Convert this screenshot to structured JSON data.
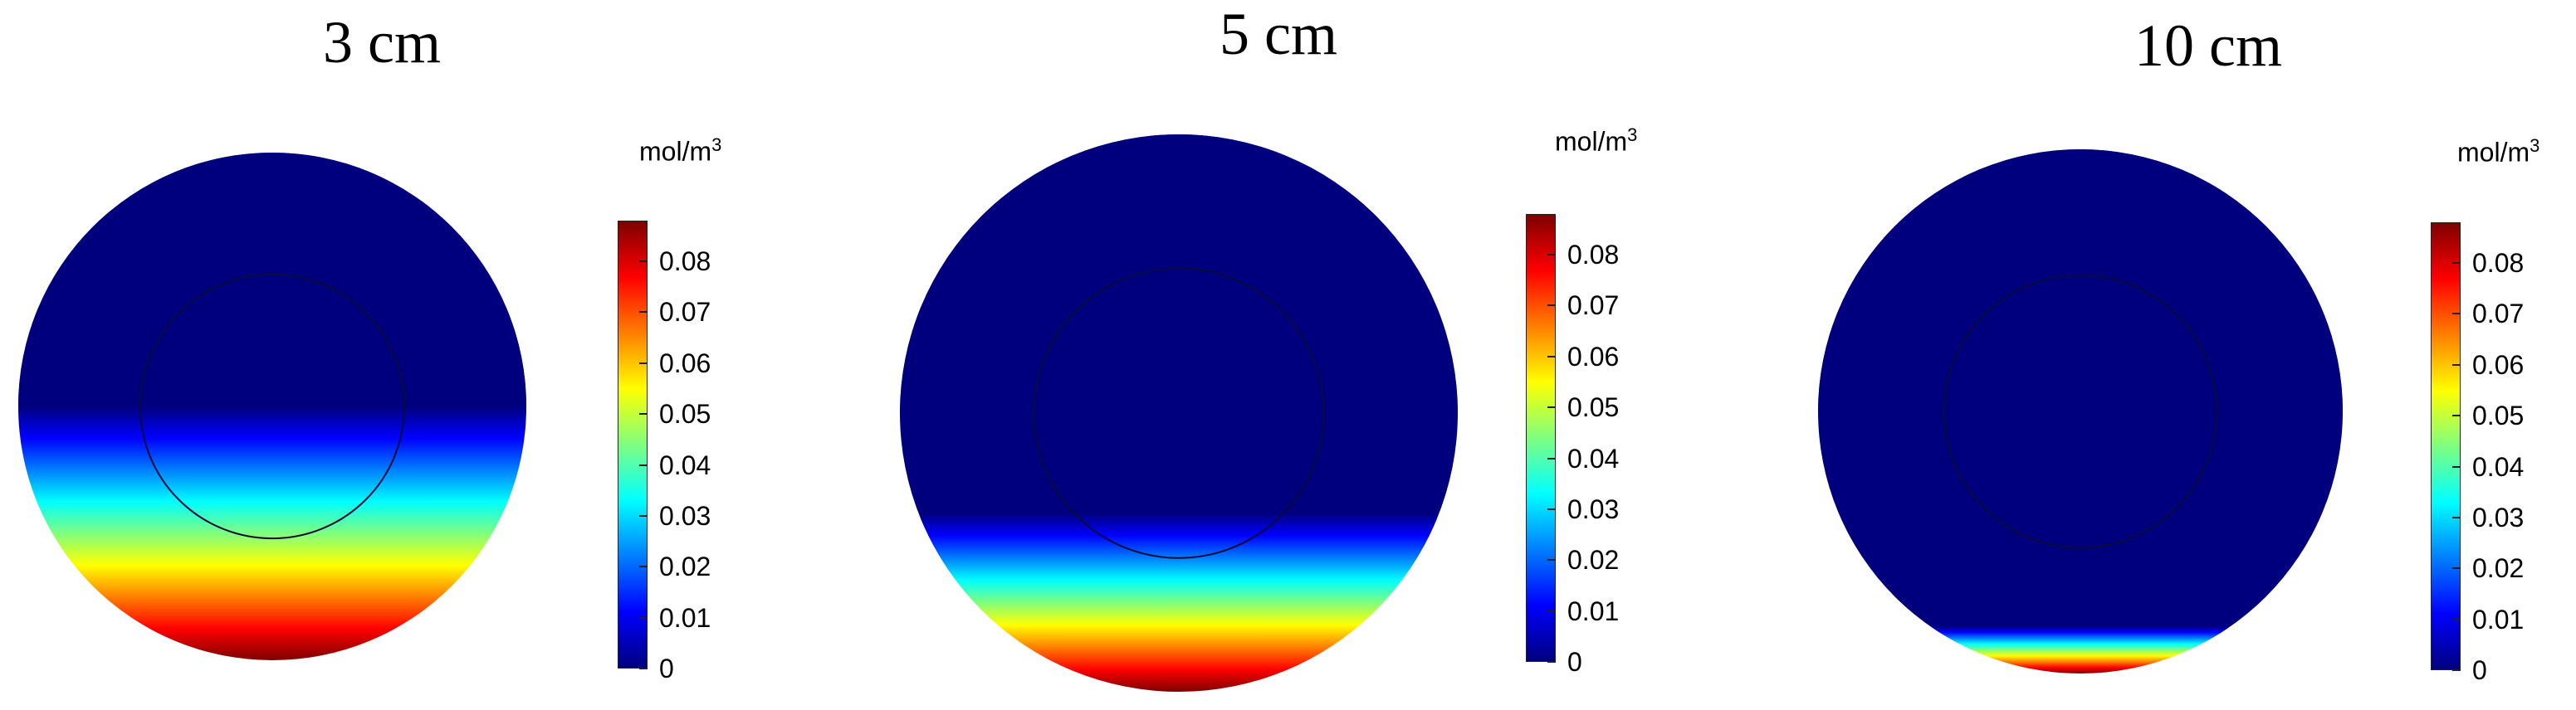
{
  "colormap": [
    "#00007f",
    "#0000ff",
    "#007fff",
    "#00ffff",
    "#7fff7f",
    "#ffff00",
    "#ff7f00",
    "#ff0000",
    "#7f0000"
  ],
  "unit": {
    "base": "mol/m",
    "exponent": "3"
  },
  "colorbar_ticks": [
    "0",
    "0.01",
    "0.02",
    "0.03",
    "0.04",
    "0.05",
    "0.06",
    "0.07",
    "0.08"
  ],
  "colorbar_range": [
    0,
    0.088
  ],
  "panels": [
    {
      "title": "3 cm",
      "gradient_depth": 0.5
    },
    {
      "title": "5 cm",
      "gradient_depth": 0.32
    },
    {
      "title": "10 cm",
      "gradient_depth": 0.09
    }
  ]
}
